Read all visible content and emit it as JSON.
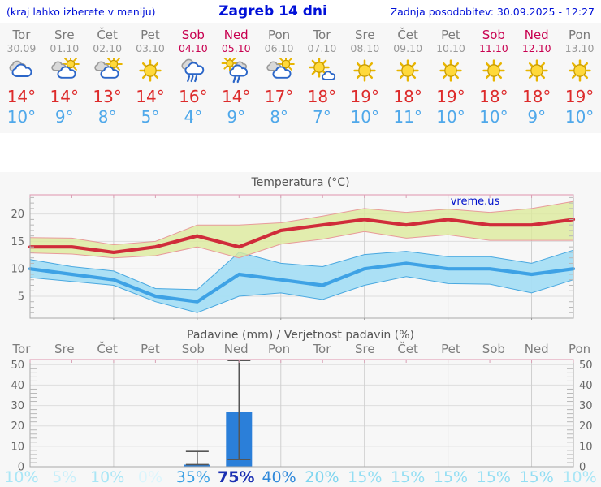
{
  "header": {
    "hint": "(kraj lahko izberete v meniju)",
    "title": "Zagreb 14 dni",
    "updated": "Zadnja posodobitev: 30.09.2025 - 12:27"
  },
  "watermark": "vreme.us",
  "days": [
    {
      "name": "Tor",
      "date": "30.09",
      "weekend": false,
      "icon": "cloudy",
      "tmax_label": "14°",
      "tmin_label": "10°",
      "pop": 10,
      "pop_label": "10%"
    },
    {
      "name": "Sre",
      "date": "01.10",
      "weekend": false,
      "icon": "partly-cloudy",
      "tmax_label": "14°",
      "tmin_label": "9°",
      "pop": 5,
      "pop_label": "5%"
    },
    {
      "name": "Čet",
      "date": "02.10",
      "weekend": false,
      "icon": "partly-cloudy",
      "tmax_label": "13°",
      "tmin_label": "8°",
      "pop": 10,
      "pop_label": "10%"
    },
    {
      "name": "Pet",
      "date": "03.10",
      "weekend": false,
      "icon": "sunny",
      "tmax_label": "14°",
      "tmin_label": "5°",
      "pop": 0,
      "pop_label": "0%"
    },
    {
      "name": "Sob",
      "date": "04.10",
      "weekend": true,
      "icon": "rain",
      "tmax_label": "16°",
      "tmin_label": "4°",
      "pop": 35,
      "pop_label": "35%"
    },
    {
      "name": "Ned",
      "date": "05.10",
      "weekend": true,
      "icon": "sun-rain",
      "tmax_label": "14°",
      "tmin_label": "9°",
      "pop": 75,
      "pop_label": "75%"
    },
    {
      "name": "Pon",
      "date": "06.10",
      "weekend": false,
      "icon": "partly-cloudy",
      "tmax_label": "17°",
      "tmin_label": "8°",
      "pop": 40,
      "pop_label": "40%"
    },
    {
      "name": "Tor",
      "date": "07.10",
      "weekend": false,
      "icon": "mostly-sunny",
      "tmax_label": "18°",
      "tmin_label": "7°",
      "pop": 20,
      "pop_label": "20%"
    },
    {
      "name": "Sre",
      "date": "08.10",
      "weekend": false,
      "icon": "sunny",
      "tmax_label": "19°",
      "tmin_label": "10°",
      "pop": 15,
      "pop_label": "15%"
    },
    {
      "name": "Čet",
      "date": "09.10",
      "weekend": false,
      "icon": "sunny",
      "tmax_label": "18°",
      "tmin_label": "11°",
      "pop": 15,
      "pop_label": "15%"
    },
    {
      "name": "Pet",
      "date": "10.10",
      "weekend": false,
      "icon": "sunny",
      "tmax_label": "19°",
      "tmin_label": "10°",
      "pop": 15,
      "pop_label": "15%"
    },
    {
      "name": "Sob",
      "date": "11.10",
      "weekend": true,
      "icon": "sunny",
      "tmax_label": "18°",
      "tmin_label": "10°",
      "pop": 15,
      "pop_label": "15%"
    },
    {
      "name": "Ned",
      "date": "12.10",
      "weekend": true,
      "icon": "sunny",
      "tmax_label": "18°",
      "tmin_label": "9°",
      "pop": 15,
      "pop_label": "15%"
    },
    {
      "name": "Pon",
      "date": "13.10",
      "weekend": false,
      "icon": "sunny",
      "tmax_label": "19°",
      "tmin_label": "10°",
      "pop": 10,
      "pop_label": "10%"
    }
  ],
  "chart_data": [
    {
      "type": "line",
      "title": "Temperatura (°C)",
      "x": [
        "Tor 30.09",
        "Sre 01.10",
        "Čet 02.10",
        "Pet 03.10",
        "Sob 04.10",
        "Ned 05.10",
        "Pon 06.10",
        "Tor 07.10",
        "Sre 08.10",
        "Čet 09.10",
        "Pet 10.10",
        "Sob 11.10",
        "Ned 12.10",
        "Pon 13.10"
      ],
      "series": [
        {
          "name": "max",
          "values": [
            14,
            14,
            13,
            14,
            16,
            14,
            17,
            18,
            19,
            18,
            19,
            18,
            18,
            19
          ]
        },
        {
          "name": "min",
          "values": [
            10,
            9,
            8,
            5,
            4,
            9,
            8,
            7,
            10,
            11,
            10,
            10,
            9,
            10
          ]
        },
        {
          "name": "max_hi",
          "values": [
            15.7,
            15.6,
            14.4,
            15.0,
            18.0,
            18.0,
            18.4,
            19.6,
            21.0,
            20.3,
            20.9,
            20.3,
            21.0,
            22.3
          ]
        },
        {
          "name": "max_lo",
          "values": [
            12.9,
            12.7,
            12.0,
            12.4,
            14.0,
            12.0,
            14.5,
            15.4,
            16.8,
            15.6,
            16.2,
            15.2,
            15.2,
            15.2
          ]
        },
        {
          "name": "min_hi",
          "values": [
            11.7,
            10.4,
            9.6,
            6.4,
            6.2,
            13.0,
            11.0,
            10.4,
            12.6,
            13.2,
            12.2,
            12.2,
            11.0,
            13.4
          ]
        },
        {
          "name": "min_lo",
          "values": [
            8.4,
            7.7,
            7.0,
            4.0,
            2.0,
            5.0,
            5.6,
            4.4,
            7.0,
            8.6,
            7.3,
            7.2,
            5.6,
            8.0
          ]
        }
      ],
      "ylim": [
        1,
        23.5
      ],
      "yticks": [
        5,
        10,
        15,
        20
      ],
      "grid": true,
      "legend": "none"
    },
    {
      "type": "bar",
      "title": "Padavine (mm) / Verjetnost padavin (%)",
      "categories": [
        "Tor",
        "Sre",
        "Čet",
        "Pet",
        "Sob",
        "Ned",
        "Pon",
        "Tor",
        "Sre",
        "Čet",
        "Pet",
        "Sob",
        "Ned",
        "Pon"
      ],
      "values": [
        0,
        0,
        0,
        0,
        1,
        27,
        0,
        0,
        0,
        0,
        0,
        0,
        0,
        0
      ],
      "whisker_low": [
        null,
        null,
        null,
        null,
        1,
        3.5,
        null,
        null,
        null,
        null,
        null,
        null,
        null,
        null
      ],
      "whisker_high": [
        null,
        null,
        null,
        null,
        7.5,
        52,
        null,
        null,
        null,
        null,
        null,
        null,
        null,
        null
      ],
      "probabilities": [
        "10%",
        "5%",
        "10%",
        "0%",
        "35%",
        "75%",
        "40%",
        "20%",
        "15%",
        "15%",
        "15%",
        "15%",
        "15%",
        "10%"
      ],
      "ylim": [
        0,
        52.5
      ],
      "yticks": [
        0,
        10,
        20,
        30,
        40,
        50
      ],
      "grid": true,
      "legend": "none"
    }
  ],
  "colors": {
    "header_blue": "#0010d8",
    "weekend": "#c80050",
    "weekday": "#7a7a7a",
    "tmax": "#dd2b2b",
    "tmin": "#4fa8ea",
    "max_line": "#d02c3a",
    "max_band": "#dcea9b",
    "min_line": "#3ea2e5",
    "min_band": "#a6def4",
    "bar": "#2b7fd9",
    "whisker": "#555555",
    "watermark_blue": "#0011cc",
    "pop_colors": {
      "0": "#dbf5fc",
      "5": "#c8effa",
      "10": "#a9e6f6",
      "15": "#93def3",
      "20": "#7ed5ef",
      "35": "#3aa0e4",
      "40": "#2f88da",
      "75": "#1b2fb2"
    }
  }
}
